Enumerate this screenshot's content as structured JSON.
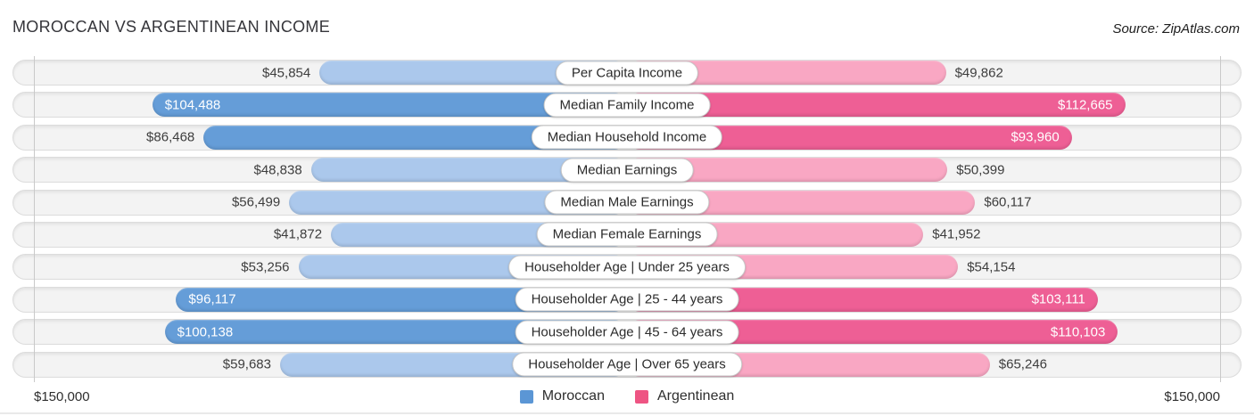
{
  "header": {
    "title": "MOROCCAN VS ARGENTINEAN INCOME",
    "source": "Source: ZipAtlas.com"
  },
  "chart_data": {
    "type": "bar",
    "subtype": "diverging-horizontal",
    "title": "MOROCCAN VS ARGENTINEAN INCOME",
    "categories": [
      "Per Capita Income",
      "Median Family Income",
      "Median Household Income",
      "Median Earnings",
      "Median Male Earnings",
      "Median Female Earnings",
      "Householder Age | Under 25 years",
      "Householder Age | 25 - 44 years",
      "Householder Age | 45 - 64 years",
      "Householder Age | Over 65 years"
    ],
    "series": [
      {
        "name": "Moroccan",
        "side": "left",
        "color": "#659dd8",
        "color_light": "#abc8ec",
        "legend_color": "#5b96d5",
        "values": [
          45854,
          104488,
          86468,
          48838,
          56499,
          41872,
          53256,
          96117,
          100138,
          59683
        ],
        "labels": [
          "$45,854",
          "$104,488",
          "$86,468",
          "$48,838",
          "$56,499",
          "$41,872",
          "$53,256",
          "$96,117",
          "$100,138",
          "$59,683"
        ]
      },
      {
        "name": "Argentinean",
        "side": "right",
        "color": "#ee5f95",
        "color_light": "#f9a7c3",
        "legend_color": "#ee5483",
        "values": [
          49862,
          112665,
          93960,
          50399,
          60117,
          41952,
          54154,
          103111,
          110103,
          65246
        ],
        "labels": [
          "$49,862",
          "$112,665",
          "$93,960",
          "$50,399",
          "$60,117",
          "$41,952",
          "$54,154",
          "$103,111",
          "$110,103",
          "$65,246"
        ]
      }
    ],
    "axis": {
      "left_label": "$150,000",
      "right_label": "$150,000"
    },
    "legend_position": "bottom-center",
    "grid": "edge gridlines at $150,000 both sides"
  }
}
